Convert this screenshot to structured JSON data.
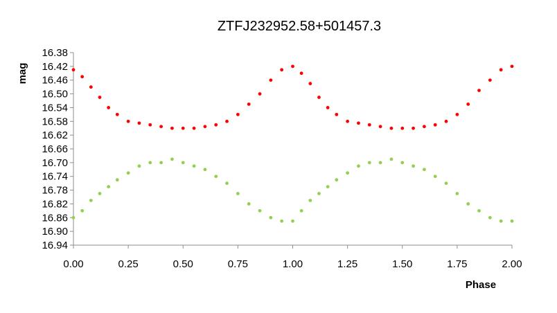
{
  "chart_data": {
    "type": "scatter",
    "title": "ZTFJ232952.58+501457.3",
    "xlabel": "Phase",
    "ylabel": "mag",
    "xlim": [
      0.0,
      2.0
    ],
    "ylim": [
      16.38,
      16.94
    ],
    "y_inverted": true,
    "grid": false,
    "legend": "none",
    "xticks": [
      "0.00",
      "0.25",
      "0.50",
      "0.75",
      "1.00",
      "1.25",
      "1.50",
      "1.75",
      "2.00"
    ],
    "yticks": [
      "16.38",
      "16.42",
      "16.46",
      "16.50",
      "16.54",
      "16.58",
      "16.62",
      "16.66",
      "16.70",
      "16.74",
      "16.78",
      "16.82",
      "16.86",
      "16.90",
      "16.94"
    ],
    "series": [
      {
        "color": "#ff0000",
        "x": [
          0.0,
          0.04,
          0.08,
          0.12,
          0.16,
          0.2,
          0.25,
          0.3,
          0.35,
          0.4,
          0.45,
          0.5,
          0.55,
          0.6,
          0.65,
          0.7,
          0.75,
          0.8,
          0.85,
          0.9,
          0.95,
          1.0,
          1.04,
          1.08,
          1.12,
          1.16,
          1.2,
          1.25,
          1.3,
          1.35,
          1.4,
          1.45,
          1.5,
          1.55,
          1.6,
          1.65,
          1.7,
          1.75,
          1.8,
          1.85,
          1.9,
          1.95,
          2.0
        ],
        "y": [
          16.43,
          16.45,
          16.48,
          16.51,
          16.54,
          16.56,
          16.58,
          16.585,
          16.59,
          16.595,
          16.6,
          16.6,
          16.6,
          16.595,
          16.59,
          16.58,
          16.56,
          16.53,
          16.5,
          16.46,
          16.43,
          16.42,
          16.44,
          16.47,
          16.51,
          16.54,
          16.56,
          16.58,
          16.585,
          16.59,
          16.595,
          16.6,
          16.6,
          16.6,
          16.595,
          16.59,
          16.58,
          16.56,
          16.53,
          16.49,
          16.46,
          16.43,
          16.42
        ]
      },
      {
        "color": "#92d050",
        "x": [
          0.0,
          0.04,
          0.08,
          0.12,
          0.16,
          0.2,
          0.25,
          0.3,
          0.35,
          0.4,
          0.45,
          0.5,
          0.55,
          0.6,
          0.65,
          0.7,
          0.75,
          0.8,
          0.85,
          0.9,
          0.95,
          1.0,
          1.04,
          1.08,
          1.12,
          1.16,
          1.2,
          1.25,
          1.3,
          1.35,
          1.4,
          1.45,
          1.5,
          1.55,
          1.6,
          1.65,
          1.7,
          1.75,
          1.8,
          1.85,
          1.9,
          1.95,
          2.0
        ],
        "y": [
          16.86,
          16.84,
          16.81,
          16.79,
          16.77,
          16.75,
          16.73,
          16.71,
          16.7,
          16.7,
          16.69,
          16.7,
          16.71,
          16.72,
          16.74,
          16.76,
          16.79,
          16.82,
          16.84,
          16.86,
          16.87,
          16.87,
          16.84,
          16.81,
          16.79,
          16.77,
          16.75,
          16.73,
          16.71,
          16.7,
          16.7,
          16.69,
          16.7,
          16.71,
          16.72,
          16.74,
          16.76,
          16.79,
          16.82,
          16.84,
          16.86,
          16.87,
          16.87
        ]
      }
    ]
  }
}
